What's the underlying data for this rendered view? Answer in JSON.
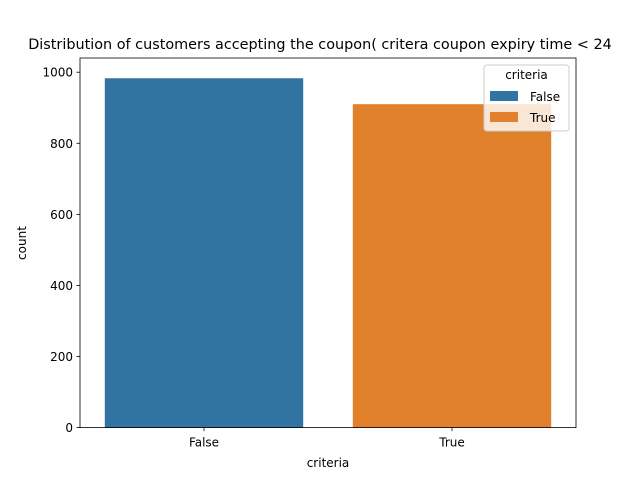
{
  "chart_data": {
    "type": "bar",
    "title": "Distribution of customers accepting the coupon( critera coupon expiry time < 24",
    "xlabel": "criteria",
    "ylabel": "count",
    "categories": [
      "False",
      "True"
    ],
    "values": [
      983,
      910
    ],
    "ylim": [
      0,
      1040
    ],
    "yticks": [
      0,
      200,
      400,
      600,
      800,
      1000
    ],
    "colors": [
      "#3274a1",
      "#e1812c"
    ],
    "legend": {
      "title": "criteria",
      "placement": "top-right",
      "entries": [
        "False",
        "True"
      ]
    },
    "grid": false
  }
}
